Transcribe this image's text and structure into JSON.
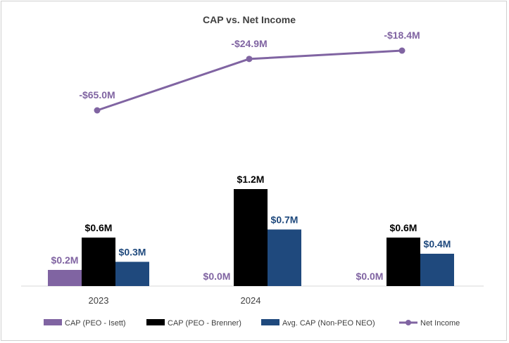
{
  "chart_data": {
    "type": "bar",
    "title": "CAP vs. Net Income",
    "categories": [
      "2023",
      "2024",
      ""
    ],
    "series": [
      {
        "name": "CAP (PEO - Isett)",
        "kind": "bar",
        "color": "#8064a2",
        "values": [
          0.2,
          0.0,
          0.0
        ],
        "labels": [
          "$0.2M",
          "$0.0M",
          "$0.0M"
        ]
      },
      {
        "name": "CAP (PEO - Brenner)",
        "kind": "bar",
        "color": "#000000",
        "values": [
          0.6,
          1.2,
          0.6
        ],
        "labels": [
          "$0.6M",
          "$1.2M",
          "$0.6M"
        ]
      },
      {
        "name": "Avg. CAP (Non-PEO NEO)",
        "kind": "bar",
        "color": "#1f497d",
        "values": [
          0.3,
          0.7,
          0.4
        ],
        "labels": [
          "$0.3M",
          "$0.7M",
          "$0.4M"
        ]
      },
      {
        "name": "Net Income",
        "kind": "line",
        "color": "#8064a2",
        "values": [
          -65.0,
          -24.9,
          -18.4
        ],
        "labels": [
          "-$65.0M",
          "-$24.9M",
          "-$18.4M"
        ]
      }
    ],
    "label_colors": [
      "#8064a2",
      "#000000",
      "#1f497d",
      "#8064a2"
    ],
    "bar_ylim": [
      0,
      1.2
    ],
    "line_ylim": [
      -65.0,
      -18.4
    ],
    "legend_position": "bottom"
  }
}
